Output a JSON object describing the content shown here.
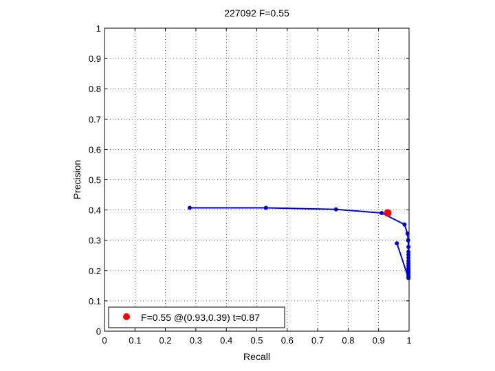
{
  "chart_data": {
    "type": "line",
    "title": "227092 F=0.55",
    "xlabel": "Recall",
    "ylabel": "Precision",
    "xlim": [
      0,
      1
    ],
    "ylim": [
      0,
      1
    ],
    "xticks": [
      "0",
      "0.1",
      "0.2",
      "0.3",
      "0.4",
      "0.5",
      "0.6",
      "0.7",
      "0.8",
      "0.9",
      "1"
    ],
    "yticks": [
      "0",
      "0.1",
      "0.2",
      "0.3",
      "0.4",
      "0.5",
      "0.6",
      "0.7",
      "0.8",
      "0.9",
      "1"
    ],
    "grid": true,
    "series_color": "#0000cc",
    "highlight_color": "#ff0000",
    "series": [
      {
        "x": [
          0.28,
          0.53,
          0.76,
          0.91,
          0.985,
          0.995,
          0.997,
          0.998,
          0.998,
          0.998,
          0.998,
          0.998,
          0.998,
          0.998,
          0.998,
          0.998,
          0.998,
          0.998,
          0.998,
          0.998,
          0.998,
          0.96
        ],
        "y": [
          0.407,
          0.407,
          0.402,
          0.39,
          0.352,
          0.322,
          0.3,
          0.278,
          0.262,
          0.252,
          0.242,
          0.232,
          0.224,
          0.216,
          0.208,
          0.202,
          0.196,
          0.19,
          0.185,
          0.18,
          0.175,
          0.29
        ]
      }
    ],
    "highlight_point": {
      "x": 0.93,
      "y": 0.39
    },
    "legend": {
      "label": "F=0.55 @(0.93,0.39) t=0.87",
      "placement": "bottom-left"
    }
  }
}
